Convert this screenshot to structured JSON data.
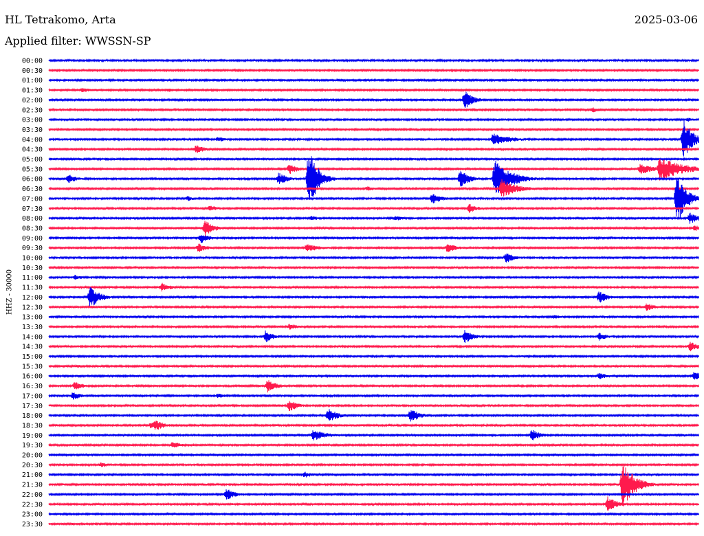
{
  "header": {
    "station": "HL Tetrakomo, Arta",
    "date": "2025-03-06",
    "filter": "Applied filter: WWSSN-SP",
    "channel": "HHZ - 30000"
  },
  "colors": {
    "even_trace": "#0000ee",
    "odd_trace": "#ff1a4d",
    "text": "#000000",
    "background": "#ffffff"
  },
  "chart_data": {
    "type": "line",
    "title": "HL Tetrakomo, Arta",
    "xlabel": "",
    "ylabel": "HHZ - 30000",
    "row_interval_minutes": 30,
    "row_labels": [
      "00:00",
      "00:30",
      "01:00",
      "01:30",
      "02:00",
      "02:30",
      "03:00",
      "03:30",
      "04:00",
      "04:30",
      "05:00",
      "05:30",
      "06:00",
      "06:30",
      "07:00",
      "07:30",
      "08:00",
      "08:30",
      "09:00",
      "09:30",
      "10:00",
      "10:30",
      "11:00",
      "11:30",
      "12:00",
      "12:30",
      "13:00",
      "13:30",
      "14:00",
      "14:30",
      "15:00",
      "15:30",
      "16:00",
      "16:30",
      "17:00",
      "17:30",
      "18:00",
      "18:30",
      "19:00",
      "19:30",
      "20:00",
      "20:30",
      "21:00",
      "21:30",
      "22:00",
      "22:30",
      "23:00",
      "23:30"
    ],
    "trace_colors": [
      "blue",
      "red"
    ],
    "events": [
      {
        "row": 0,
        "minute": 6.5,
        "amplitude": 2
      },
      {
        "row": 1,
        "minute": 26.5,
        "amplitude": 2
      },
      {
        "row": 3,
        "minute": 1.5,
        "amplitude": 3,
        "duration": 3.5
      },
      {
        "row": 3,
        "minute": 5.5,
        "amplitude": 3
      },
      {
        "row": 4,
        "minute": 19.2,
        "amplitude": 14
      },
      {
        "row": 5,
        "minute": 25.1,
        "amplitude": 4
      },
      {
        "row": 6,
        "minute": 29.5,
        "amplitude": 3
      },
      {
        "row": 8,
        "minute": 7.8,
        "amplitude": 4
      },
      {
        "row": 8,
        "minute": 20.5,
        "amplitude": 9,
        "duration": 2.5
      },
      {
        "row": 8,
        "minute": 29.3,
        "amplitude": 30
      },
      {
        "row": 9,
        "minute": 6.8,
        "amplitude": 7
      },
      {
        "row": 11,
        "minute": 11.1,
        "amplitude": 8
      },
      {
        "row": 11,
        "minute": 28.2,
        "amplitude": 18,
        "duration": 3
      },
      {
        "row": 11,
        "minute": 27.3,
        "amplitude": 8,
        "duration": 2
      },
      {
        "row": 12,
        "minute": 0.9,
        "amplitude": 7
      },
      {
        "row": 12,
        "minute": 10.6,
        "amplitude": 10
      },
      {
        "row": 12,
        "minute": 12.0,
        "amplitude": 46
      },
      {
        "row": 12,
        "minute": 19.0,
        "amplitude": 14
      },
      {
        "row": 12,
        "minute": 20.6,
        "amplitude": 30,
        "duration": 2
      },
      {
        "row": 13,
        "minute": 20.9,
        "amplitude": 14,
        "duration": 2
      },
      {
        "row": 13,
        "minute": 14.7,
        "amplitude": 4
      },
      {
        "row": 14,
        "minute": 6.4,
        "amplitude": 4
      },
      {
        "row": 14,
        "minute": 17.7,
        "amplitude": 9
      },
      {
        "row": 14,
        "minute": 29.0,
        "amplitude": 40
      },
      {
        "row": 15,
        "minute": 7.4,
        "amplitude": 5
      },
      {
        "row": 15,
        "minute": 19.4,
        "amplitude": 7
      },
      {
        "row": 16,
        "minute": 12.1,
        "amplitude": 4
      },
      {
        "row": 16,
        "minute": 16.0,
        "amplitude": 4
      },
      {
        "row": 16,
        "minute": 29.6,
        "amplitude": 9
      },
      {
        "row": 17,
        "minute": 7.2,
        "amplitude": 12
      },
      {
        "row": 17,
        "minute": 29.8,
        "amplitude": 5
      },
      {
        "row": 18,
        "minute": 7.0,
        "amplitude": 8
      },
      {
        "row": 19,
        "minute": 6.9,
        "amplitude": 7
      },
      {
        "row": 19,
        "minute": 11.9,
        "amplitude": 6,
        "duration": 2
      },
      {
        "row": 19,
        "minute": 18.4,
        "amplitude": 8
      },
      {
        "row": 20,
        "minute": 21.1,
        "amplitude": 8
      },
      {
        "row": 22,
        "minute": 1.2,
        "amplitude": 4
      },
      {
        "row": 23,
        "minute": 5.2,
        "amplitude": 7
      },
      {
        "row": 24,
        "minute": 1.9,
        "amplitude": 18
      },
      {
        "row": 24,
        "minute": 25.4,
        "amplitude": 9
      },
      {
        "row": 25,
        "minute": 27.6,
        "amplitude": 6
      },
      {
        "row": 26,
        "minute": 23.3,
        "amplitude": 3,
        "duration": 2
      },
      {
        "row": 27,
        "minute": 11.1,
        "amplitude": 5
      },
      {
        "row": 28,
        "minute": 10.0,
        "amplitude": 9
      },
      {
        "row": 28,
        "minute": 19.2,
        "amplitude": 10
      },
      {
        "row": 28,
        "minute": 25.4,
        "amplitude": 6
      },
      {
        "row": 29,
        "minute": 29.6,
        "amplitude": 8
      },
      {
        "row": 31,
        "minute": 1.3,
        "amplitude": 3
      },
      {
        "row": 32,
        "minute": 25.4,
        "amplitude": 5
      },
      {
        "row": 32,
        "minute": 29.8,
        "amplitude": 8
      },
      {
        "row": 33,
        "minute": 1.2,
        "amplitude": 7
      },
      {
        "row": 33,
        "minute": 10.1,
        "amplitude": 10
      },
      {
        "row": 34,
        "minute": 1.1,
        "amplitude": 6
      },
      {
        "row": 34,
        "minute": 7.8,
        "amplitude": 4
      },
      {
        "row": 35,
        "minute": 11.1,
        "amplitude": 9
      },
      {
        "row": 36,
        "minute": 12.9,
        "amplitude": 11
      },
      {
        "row": 36,
        "minute": 16.7,
        "amplitude": 11
      },
      {
        "row": 37,
        "minute": 4.7,
        "amplitude": 5
      },
      {
        "row": 37,
        "minute": 4.9,
        "amplitude": 9
      },
      {
        "row": 38,
        "minute": 12.2,
        "amplitude": 8,
        "duration": 2
      },
      {
        "row": 38,
        "minute": 22.3,
        "amplitude": 9
      },
      {
        "row": 39,
        "minute": 5.7,
        "amplitude": 6
      },
      {
        "row": 41,
        "minute": 2.4,
        "amplitude": 4
      },
      {
        "row": 42,
        "minute": 11.8,
        "amplitude": 5
      },
      {
        "row": 43,
        "minute": 26.5,
        "amplitude": 36,
        "duration": 1.5
      },
      {
        "row": 44,
        "minute": 8.2,
        "amplitude": 9
      },
      {
        "row": 45,
        "minute": 25.8,
        "amplitude": 12
      }
    ]
  }
}
